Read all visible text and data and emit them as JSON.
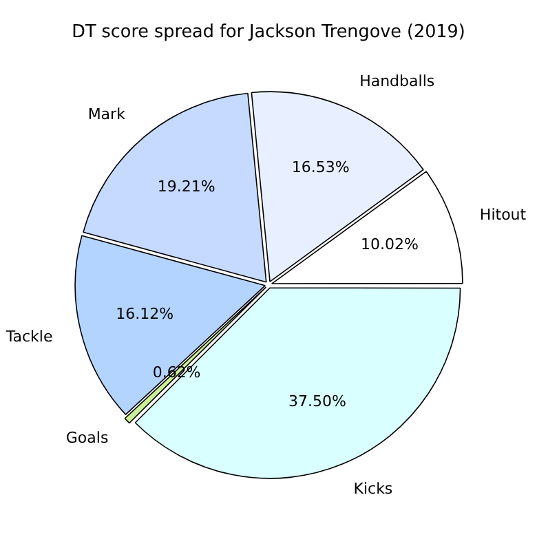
{
  "chart_data": {
    "type": "pie",
    "title": "DT score spread for Jackson Trengove (2019)",
    "categories": [
      "Kicks",
      "Goals",
      "Tackle",
      "Mark",
      "Handballs",
      "Hitout"
    ],
    "values": [
      37.5,
      0.62,
      16.12,
      19.21,
      16.53,
      10.02
    ],
    "colors": [
      "#d9ffff",
      "#ccee99",
      "#b3d4ff",
      "#c6d9ff",
      "#e8f0ff",
      "#ffffff"
    ],
    "value_labels": [
      "37.50%",
      "0.62%",
      "16.12%",
      "19.21%",
      "16.53%",
      "10.02%"
    ]
  }
}
